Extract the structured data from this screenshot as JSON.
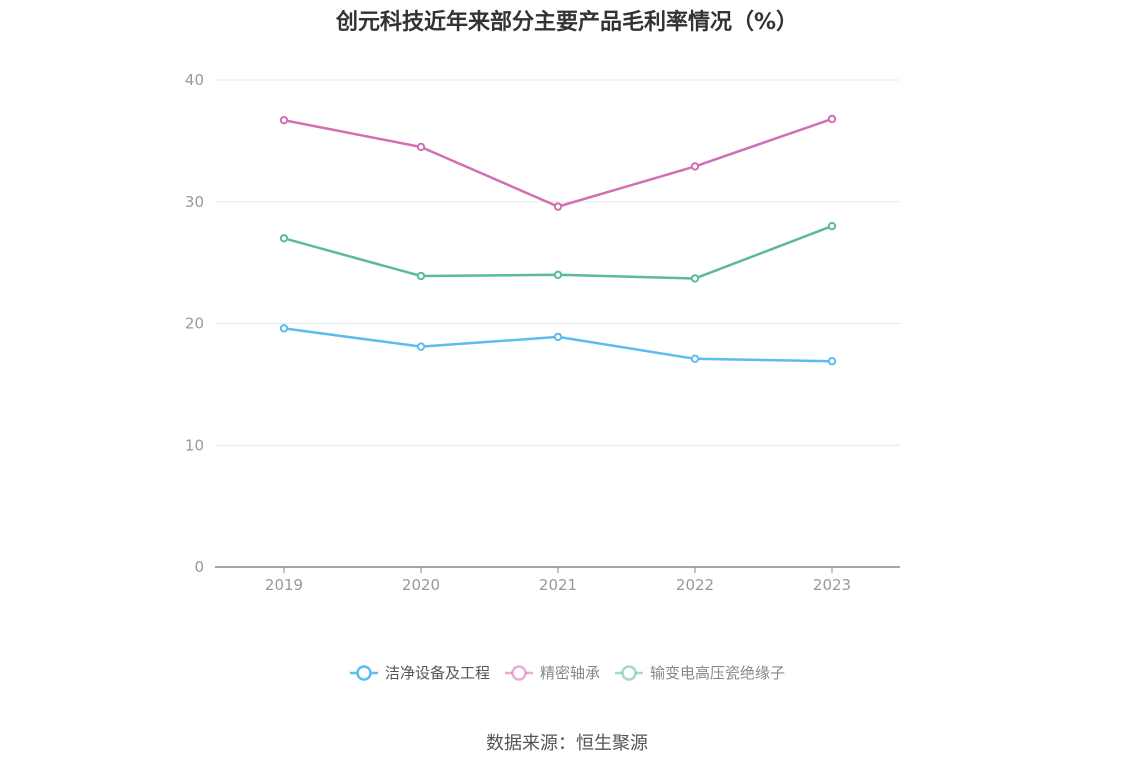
{
  "chart_data": {
    "type": "line",
    "title": "创元科技近年来部分主要产品毛利率情况（%）",
    "xlabel": "",
    "ylabel": "",
    "categories": [
      "2019",
      "2020",
      "2021",
      "2022",
      "2023"
    ],
    "ylim": [
      0,
      40
    ],
    "yticks": [
      0,
      10,
      20,
      30,
      40
    ],
    "grid": true,
    "legend_position": "bottom",
    "series": [
      {
        "name": "洁净设备及工程",
        "color": "#5bbdee",
        "values": [
          19.6,
          18.1,
          18.9,
          17.1,
          16.9
        ]
      },
      {
        "name": "精密轴承",
        "color": "#d46eb4",
        "values": [
          36.7,
          34.5,
          29.6,
          32.9,
          36.8
        ]
      },
      {
        "name": "输变电高压瓷绝缘子",
        "color": "#5bb9a2",
        "values": [
          27.0,
          23.9,
          24.0,
          23.7,
          28.0
        ]
      }
    ]
  },
  "source": "数据来源：恒生聚源"
}
